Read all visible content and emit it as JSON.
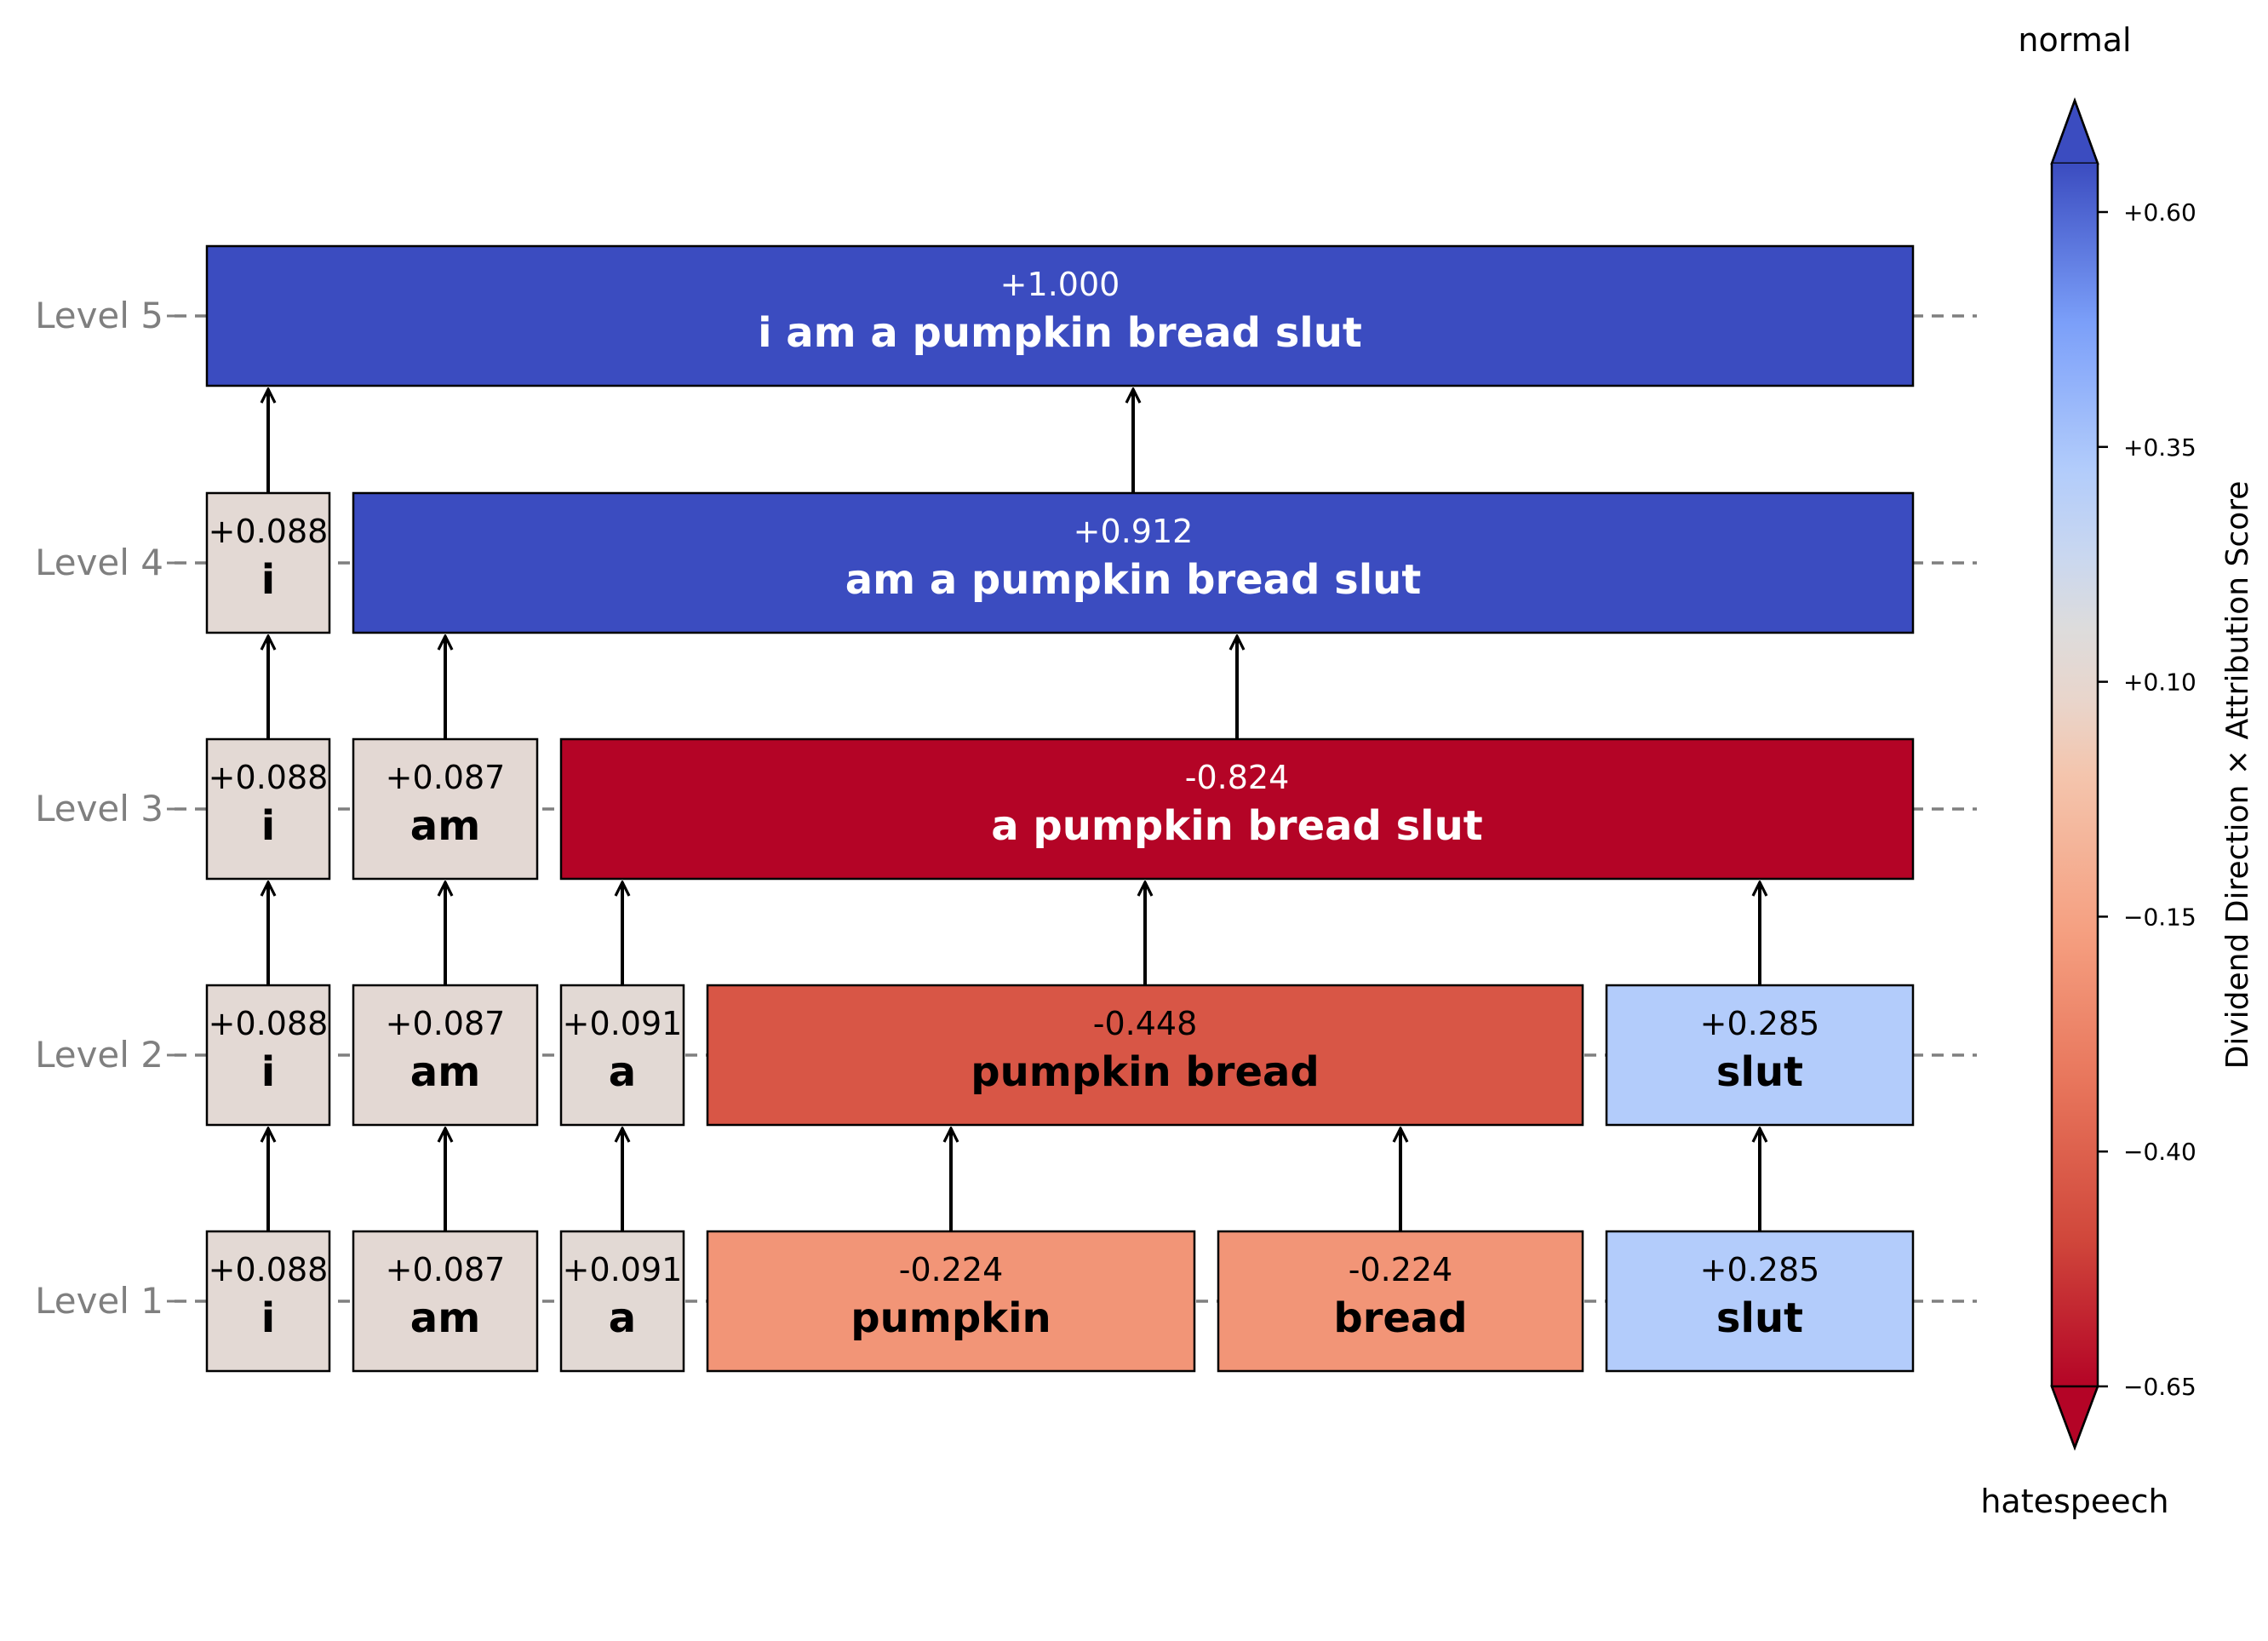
{
  "chart_data": {
    "type": "hierarchical-attribution",
    "colorbar": {
      "label": "Dividend Direction × Attribution Score",
      "top_label": "normal",
      "bottom_label": "hatespeech",
      "ticks": [
        "+0.60",
        "+0.35",
        "+0.10",
        "−0.15",
        "−0.40",
        "−0.65"
      ],
      "min": -0.65,
      "max": 0.6,
      "colormap": "coolwarm"
    },
    "levels": [
      {
        "label": "Level 5",
        "nodes": [
          {
            "text": "i am a pumpkin bread slut",
            "score_label": "+1.000",
            "score": 1.0
          }
        ]
      },
      {
        "label": "Level 4",
        "nodes": [
          {
            "text": "i",
            "score_label": "+0.088",
            "score": 0.088
          },
          {
            "text": "am a pumpkin bread slut",
            "score_label": "+0.912",
            "score": 0.912
          }
        ]
      },
      {
        "label": "Level 3",
        "nodes": [
          {
            "text": "i",
            "score_label": "+0.088",
            "score": 0.088
          },
          {
            "text": "am",
            "score_label": "+0.087",
            "score": 0.087
          },
          {
            "text": "a pumpkin bread slut",
            "score_label": "-0.824",
            "score": -0.824
          }
        ]
      },
      {
        "label": "Level 2",
        "nodes": [
          {
            "text": "i",
            "score_label": "+0.088",
            "score": 0.088
          },
          {
            "text": "am",
            "score_label": "+0.087",
            "score": 0.087
          },
          {
            "text": "a",
            "score_label": "+0.091",
            "score": 0.091
          },
          {
            "text": "pumpkin bread",
            "score_label": "-0.448",
            "score": -0.448
          },
          {
            "text": "slut",
            "score_label": "+0.285",
            "score": 0.285
          }
        ]
      },
      {
        "label": "Level 1",
        "nodes": [
          {
            "text": "i",
            "score_label": "+0.088",
            "score": 0.088
          },
          {
            "text": "am",
            "score_label": "+0.087",
            "score": 0.087
          },
          {
            "text": "a",
            "score_label": "+0.091",
            "score": 0.091
          },
          {
            "text": "pumpkin",
            "score_label": "-0.224",
            "score": -0.224
          },
          {
            "text": "bread",
            "score_label": "-0.224",
            "score": -0.224
          },
          {
            "text": "slut",
            "score_label": "+0.285",
            "score": 0.285
          }
        ]
      }
    ]
  }
}
